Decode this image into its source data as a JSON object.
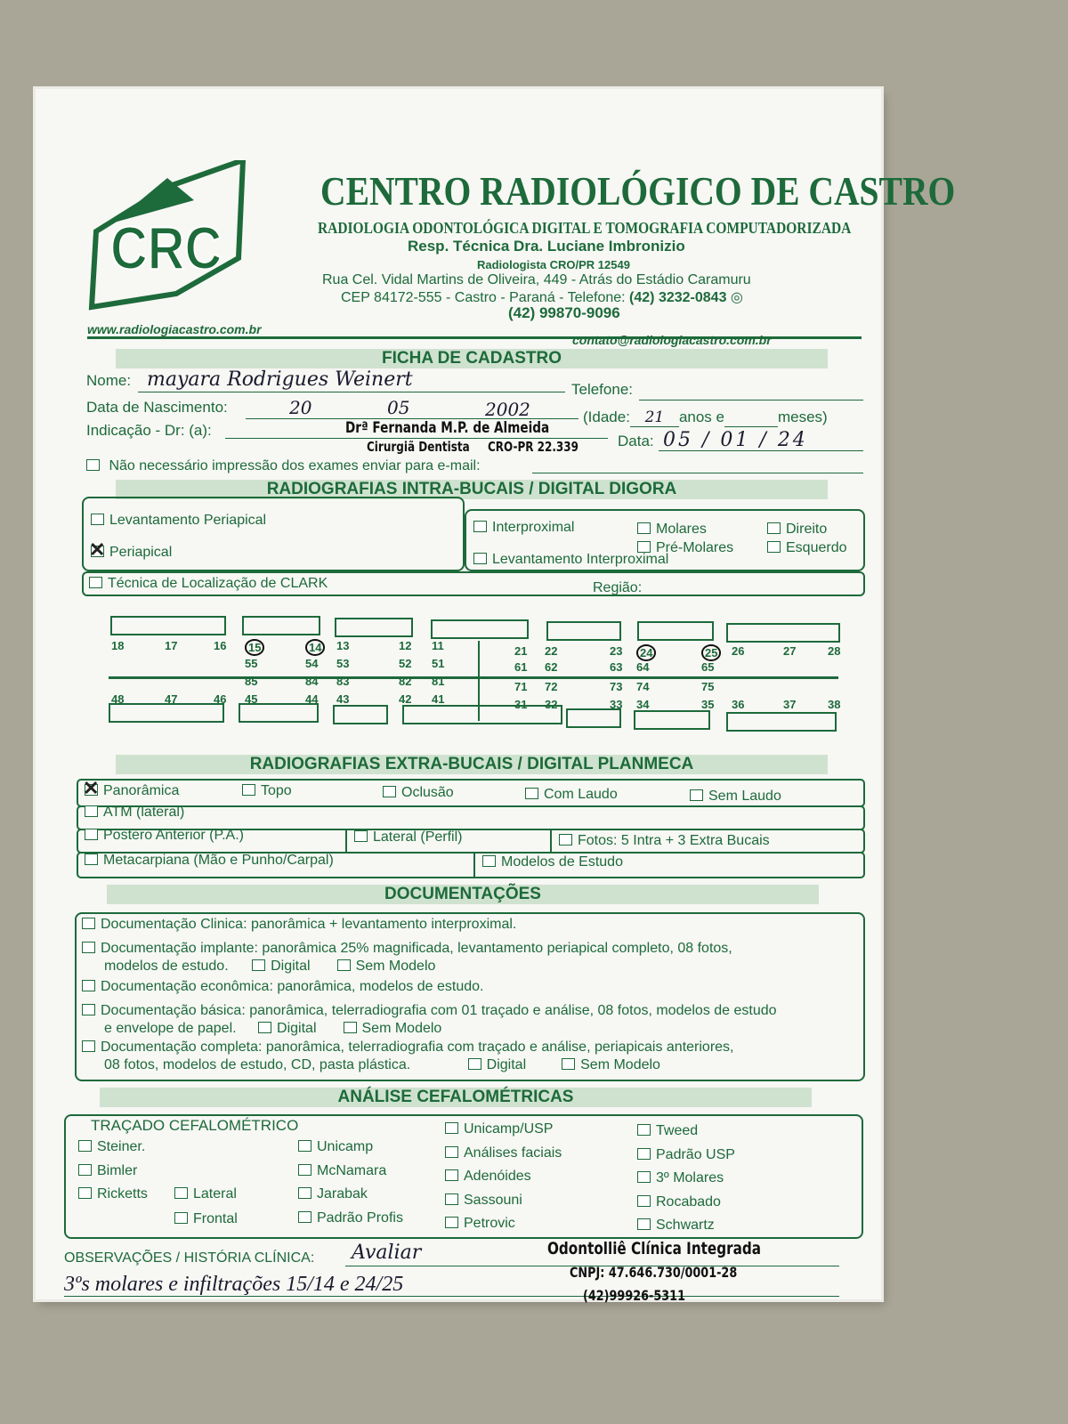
{
  "header": {
    "logo_text": "CRC",
    "title": "CENTRO RADIOLÓGICO DE CASTRO",
    "subtitle": "RADIOLOGIA ODONTOLÓGICA DIGITAL E TOMOGRAFIA COMPUTADORIZADA",
    "resp": "Resp. Técnica Dra. Luciane Imbronizio",
    "radiologista": "Radiologista CRO/PR 12549",
    "address1": "Rua Cel. Vidal Martins de Oliveira, 449 - Atrás do Estádio Caramuru",
    "address2": "CEP 84172-555 - Castro - Paraná - Telefone:",
    "phone1": "(42) 3232-0843",
    "phone2": "(42) 99870-9096",
    "website": "www.radiologiacastro.com.br",
    "email": "contato@radiologiacastro.com.br"
  },
  "ficha": {
    "title": "FICHA DE CADASTRO",
    "nome_label": "Nome:",
    "nome_value": "mayara Rodrigues Weinert",
    "telefone_label": "Telefone:",
    "nasc_label": "Data de Nascimento:",
    "nasc_day": "20",
    "nasc_month": "05",
    "nasc_year": "2002",
    "idade_label": "(Idade:",
    "idade_value": "21",
    "anos_label": "anos e",
    "meses_label": "meses)",
    "indicacao_label": "Indicação - Dr: (a):",
    "data_label": "Data:",
    "data_day": "05",
    "data_month": "01",
    "data_year": "24",
    "nao_impressao": "Não necessário impressão dos exames enviar para e-mail:",
    "stamp_line1": "Drª Fernanda M.P. de Almeida",
    "stamp_line2": "Cirurgiã Dentista",
    "stamp_line3": "CRO-PR 22.339"
  },
  "intra": {
    "title": "RADIOGRAFIAS INTRA-BUCAIS / DIGITAL DIGORA",
    "levantamento_periapical": "Levantamento Periapical",
    "periapical": "Periapical",
    "periapical_checked": true,
    "interproximal": "Interproximal",
    "levantamento_interproximal": "Levantamento Interproximal",
    "molares": "Molares",
    "pre_molares": "Pré-Molares",
    "direito": "Direito",
    "esquerdo": "Esquerdo",
    "clark": "Técnica de Localização de CLARK",
    "regiao": "Região:"
  },
  "teeth": {
    "upper_right": [
      "18",
      "17",
      "16",
      "15",
      "14",
      "13",
      "12",
      "11"
    ],
    "upper_left": [
      "21",
      "22",
      "23",
      "24",
      "25",
      "26",
      "27",
      "28"
    ],
    "upper_deciduous_right": [
      "55",
      "54",
      "53",
      "52",
      "51"
    ],
    "upper_deciduous_left": [
      "61",
      "62",
      "63",
      "64",
      "65"
    ],
    "lower_deciduous_right": [
      "85",
      "84",
      "83",
      "82",
      "81"
    ],
    "lower_deciduous_left": [
      "71",
      "72",
      "73",
      "74",
      "75"
    ],
    "lower_right": [
      "48",
      "47",
      "46",
      "45",
      "44",
      "43",
      "42",
      "41"
    ],
    "lower_left": [
      "31",
      "32",
      "33",
      "34",
      "35",
      "36",
      "37",
      "38"
    ],
    "circled": [
      "15",
      "14",
      "24",
      "25"
    ]
  },
  "extra": {
    "title": "RADIOGRAFIAS EXTRA-BUCAIS / DIGITAL PLANMECA",
    "panoramica": "Panorâmica",
    "panoramica_checked": true,
    "topo": "Topo",
    "oclusao": "Oclusão",
    "com_laudo": "Com Laudo",
    "sem_laudo": "Sem Laudo",
    "atm": "ATM (lateral)",
    "pa": "Postero Anterior (P.A.)",
    "lateral": "Lateral (Perfil)",
    "fotos": "Fotos: 5 Intra + 3 Extra Bucais",
    "metacarpiana": "Metacarpiana (Mão e Punho/Carpal)",
    "modelos": "Modelos de Estudo"
  },
  "doc": {
    "title": "DOCUMENTAÇÕES",
    "clinica": "Documentação Clinica: panorâmica + levantamento interproximal.",
    "implante1": "Documentação implante: panorâmica 25% magnificada, levantamento periapical completo, 08 fotos,",
    "implante2": "modelos de estudo.",
    "economica": "Documentação econômica: panorâmica, modelos de estudo.",
    "basica1": "Documentação básica: panorâmica, telerradiografia com 01 traçado e análise, 08 fotos, modelos de estudo",
    "basica2": "e envelope de papel.",
    "completa1": "Documentação completa: panorâmica, telerradiografia com traçado e análise, periapicais anteriores,",
    "completa2": "08 fotos, modelos de estudo, CD, pasta plástica.",
    "digital": "Digital",
    "sem_modelo": "Sem Modelo"
  },
  "cefalo": {
    "title": "ANÁLISE CEFALOMÉTRICAS",
    "tracado": "TRAÇADO CEFALOMÉTRICO",
    "col1": [
      "Steiner.",
      "Bimler",
      "Ricketts"
    ],
    "lateral": "Lateral",
    "frontal": "Frontal",
    "col2": [
      "Unicamp",
      "McNamara",
      "Jarabak",
      "Padrão Profis"
    ],
    "col3": [
      "Unicamp/USP",
      "Análises faciais",
      "Adenóides",
      "Sassouni",
      "Petrovic"
    ],
    "col4": [
      "Tweed",
      "Padrão USP",
      "3º Molares",
      "Rocabado",
      "Schwartz"
    ]
  },
  "obs": {
    "label": "OBSERVAÇÕES / HISTÓRIA CLÍNICA:",
    "line1": "Avaliar",
    "line2": "3ºs molares e infiltrações 15/14 e 24/25",
    "stamp1": "Odontolliê Clínica Integrada",
    "stamp2": "CNPJ: 47.646.730/0001-28",
    "stamp3": "(42)99926-5311"
  }
}
